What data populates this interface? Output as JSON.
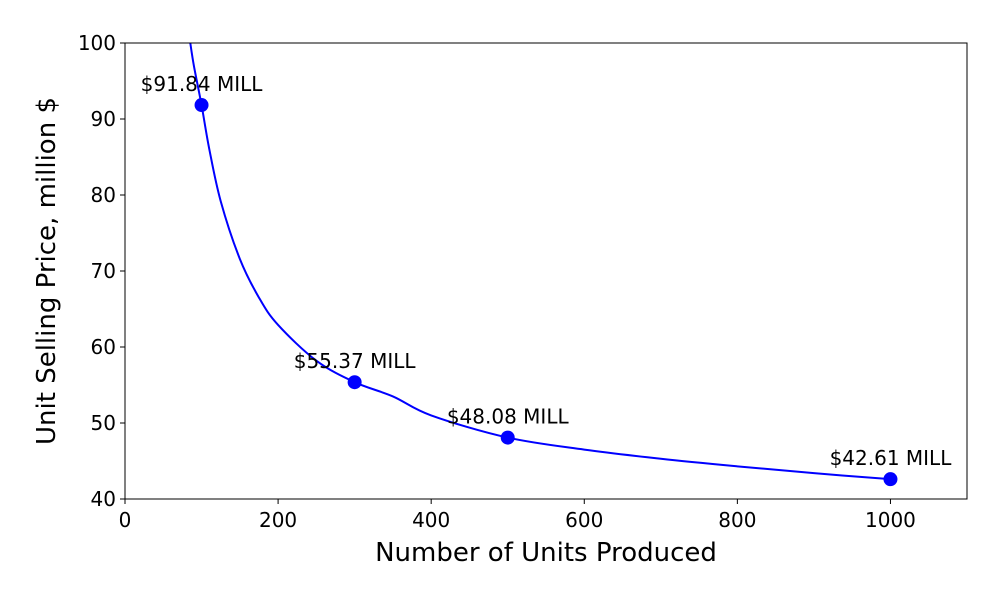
{
  "chart_data": {
    "type": "line",
    "title": "",
    "xlabel": "Number of Units Produced",
    "ylabel": "Unit Selling Price, million $",
    "xlim": [
      0,
      1100
    ],
    "ylim": [
      40,
      100
    ],
    "x_ticks": [
      0,
      200,
      400,
      600,
      800,
      1000
    ],
    "y_ticks": [
      40,
      50,
      60,
      70,
      80,
      90,
      100
    ],
    "grid": false,
    "line_color": "#0000ff",
    "curve": {
      "x": [
        85,
        90,
        100,
        110,
        125,
        150,
        175,
        200,
        250,
        300,
        350,
        400,
        500,
        600,
        700,
        800,
        900,
        1000
      ],
      "y": [
        100.2,
        97.0,
        91.84,
        86.1,
        79.2,
        71.6,
        66.5,
        62.9,
        58.2,
        55.37,
        53.5,
        51.0,
        48.08,
        46.5,
        45.3,
        44.3,
        43.4,
        42.61
      ]
    },
    "points": [
      {
        "x": 100,
        "y": 91.84,
        "label": "$91.84 MILL"
      },
      {
        "x": 300,
        "y": 55.37,
        "label": "$55.37 MILL"
      },
      {
        "x": 500,
        "y": 48.08,
        "label": "$48.08 MILL"
      },
      {
        "x": 1000,
        "y": 42.61,
        "label": "$42.61 MILL"
      }
    ]
  }
}
